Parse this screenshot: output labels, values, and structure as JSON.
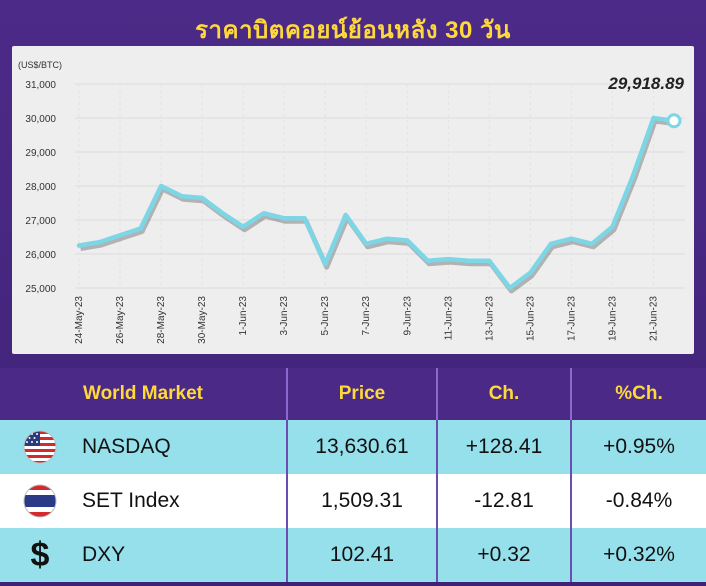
{
  "title": "ราคาบิตคอยน์ย้อนหลัง 30 วัน",
  "chart_data": {
    "type": "line",
    "ylabel": "(US$/BTC)",
    "ylim": [
      25000,
      31000
    ],
    "yticks": [
      25000,
      26000,
      27000,
      28000,
      29000,
      30000,
      31000
    ],
    "ytick_labels": [
      "25,000",
      "26,000",
      "27,000",
      "28,000",
      "29,000",
      "30,000",
      "31,000"
    ],
    "x_tick_labels": [
      "24-May-23",
      "26-May-23",
      "28-May-23",
      "30-May-23",
      "1-Jun-23",
      "3-Jun-23",
      "5-Jun-23",
      "7-Jun-23",
      "9-Jun-23",
      "11-Jun-23",
      "13-Jun-23",
      "15-Jun-23",
      "17-Jun-23",
      "19-Jun-23",
      "21-Jun-23"
    ],
    "x": [
      "24-May-23",
      "25-May-23",
      "26-May-23",
      "27-May-23",
      "28-May-23",
      "29-May-23",
      "30-May-23",
      "31-May-23",
      "1-Jun-23",
      "2-Jun-23",
      "3-Jun-23",
      "4-Jun-23",
      "5-Jun-23",
      "6-Jun-23",
      "7-Jun-23",
      "8-Jun-23",
      "9-Jun-23",
      "10-Jun-23",
      "11-Jun-23",
      "12-Jun-23",
      "13-Jun-23",
      "14-Jun-23",
      "15-Jun-23",
      "16-Jun-23",
      "17-Jun-23",
      "18-Jun-23",
      "19-Jun-23",
      "20-Jun-23",
      "21-Jun-23",
      "22-Jun-23"
    ],
    "values": [
      26250,
      26350,
      26550,
      26750,
      28000,
      27700,
      27650,
      27200,
      26800,
      27200,
      27050,
      27050,
      25700,
      27150,
      26300,
      26450,
      26400,
      25800,
      25850,
      25800,
      25800,
      25000,
      25450,
      26300,
      26450,
      26300,
      26800,
      28300,
      30000,
      29918.89
    ],
    "last_label": "29,918.89",
    "line_color": "#7dd6e6",
    "grid": true
  },
  "table": {
    "headers": [
      "World Market",
      "Price",
      "Ch.",
      "%Ch."
    ],
    "rows": [
      {
        "icon": "us-flag-icon",
        "name": "NASDAQ",
        "price": "13,630.61",
        "ch": "+128.41",
        "pct": "+0.95%"
      },
      {
        "icon": "thai-flag-icon",
        "name": "SET Index",
        "price": "1,509.31",
        "ch": "-12.81",
        "pct": "-0.84%"
      },
      {
        "icon": "dollar-icon",
        "name": "DXY",
        "price": "102.41",
        "ch": "+0.32",
        "pct": "+0.32%"
      }
    ]
  }
}
